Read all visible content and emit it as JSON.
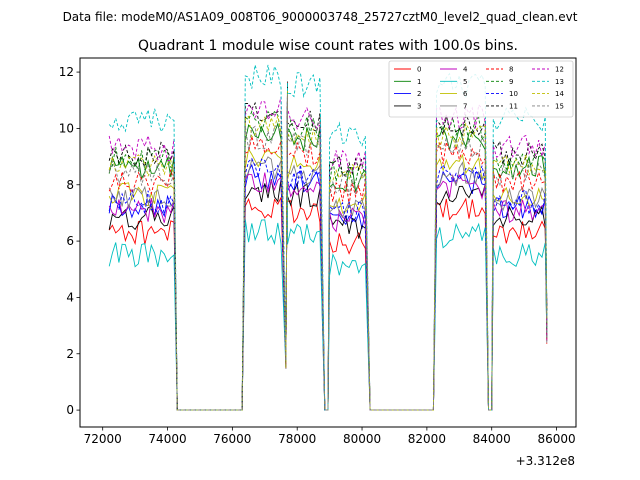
{
  "header": {
    "datafile": "Data file: modeM0/AS1A09_008T06_9000003748_25727cztM0_level2_quad_clean.evt"
  },
  "chart_data": {
    "type": "line",
    "title": "Quadrant 1 module wise count rates with 100.0s bins.",
    "xlabel": "",
    "ylabel": "",
    "offset_text": "+3.312e8",
    "xlim": [
      71300,
      86600
    ],
    "ylim": [
      -0.6,
      12.5
    ],
    "xticks": [
      72000,
      74000,
      76000,
      78000,
      80000,
      82000,
      84000,
      86000
    ],
    "xtick_labels": [
      "72000",
      "74000",
      "76000",
      "78000",
      "80000",
      "82000",
      "84000",
      "86000"
    ],
    "yticks": [
      0,
      2,
      4,
      6,
      8,
      10,
      12
    ],
    "ytick_labels": [
      "0",
      "2",
      "4",
      "6",
      "8",
      "10",
      "12"
    ],
    "legend_position": "top-right",
    "legend_columns": 4,
    "series": [
      {
        "name": "0",
        "color": "#ff0000",
        "style": "solid",
        "level": 6.3
      },
      {
        "name": "1",
        "color": "#008000",
        "style": "solid",
        "level": 8.6
      },
      {
        "name": "2",
        "color": "#0000ff",
        "style": "solid",
        "level": 7.2
      },
      {
        "name": "3",
        "color": "#000000",
        "style": "solid",
        "level": 6.8
      },
      {
        "name": "4",
        "color": "#bf00bf",
        "style": "solid",
        "level": 7.1
      },
      {
        "name": "5",
        "color": "#00bfbf",
        "style": "solid",
        "level": 5.5
      },
      {
        "name": "6",
        "color": "#bfbf00",
        "style": "solid",
        "level": 7.7
      },
      {
        "name": "7",
        "color": "#808080",
        "style": "solid",
        "level": 7.5
      },
      {
        "name": "8",
        "color": "#ff0000",
        "style": "dashed",
        "level": 8.1
      },
      {
        "name": "9",
        "color": "#008000",
        "style": "dashed",
        "level": 8.9
      },
      {
        "name": "10",
        "color": "#0000ff",
        "style": "dashed",
        "level": 7.4
      },
      {
        "name": "11",
        "color": "#000000",
        "style": "dashed",
        "level": 9.1
      },
      {
        "name": "12",
        "color": "#bf00bf",
        "style": "dashed",
        "level": 9.3
      },
      {
        "name": "13",
        "color": "#00bfbf",
        "style": "dashed",
        "level": 10.3
      },
      {
        "name": "14",
        "color": "#bfbf00",
        "style": "dashed",
        "level": 8.7
      },
      {
        "name": "15",
        "color": "#808080",
        "style": "dashed",
        "level": 8.4
      }
    ],
    "segments": [
      {
        "x_start": 72200,
        "x_end": 74200,
        "scale": 1.0
      },
      {
        "x_start": 76400,
        "x_end": 77550,
        "scale": 1.15
      },
      {
        "x_start": 77700,
        "x_end": 78750,
        "scale": 1.12
      },
      {
        "x_start": 79000,
        "x_end": 80150,
        "scale": 0.95
      },
      {
        "x_start": 82300,
        "x_end": 83850,
        "scale": 1.12
      },
      {
        "x_start": 84050,
        "x_end": 85650,
        "scale": 1.0
      }
    ],
    "zero_intervals": [
      [
        74300,
        76300
      ],
      [
        78850,
        78950
      ],
      [
        80250,
        82200
      ],
      [
        83900,
        84000
      ]
    ],
    "spikes": [
      {
        "x": 77650,
        "value": 1.6
      },
      {
        "x": 77700,
        "value": 11.7
      }
    ]
  }
}
